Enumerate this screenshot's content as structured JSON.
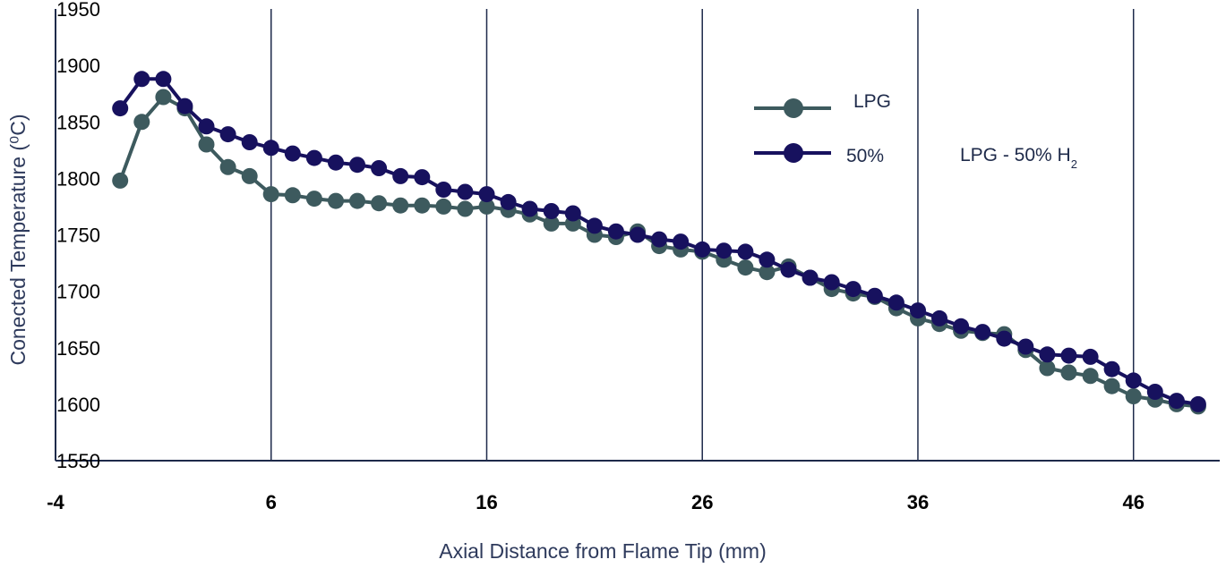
{
  "chart_data": {
    "type": "line",
    "xlabel": "Axial Distance from Flame Tip (mm)",
    "ylabel": "Conected Temperature (⁰C)",
    "xlim": [
      -4,
      50
    ],
    "ylim": [
      1550,
      1950
    ],
    "x_ticks": [
      "-4",
      "6",
      "16",
      "26",
      "36",
      "46"
    ],
    "x_tick_values": [
      -4,
      6,
      16,
      26,
      36,
      46
    ],
    "y_ticks": [
      "1950",
      "1900",
      "1850",
      "1800",
      "1750",
      "1700",
      "1650",
      "1600",
      "1550"
    ],
    "y_tick_values": [
      1950,
      1900,
      1850,
      1800,
      1750,
      1700,
      1650,
      1600,
      1550
    ],
    "grid": "vertical",
    "legend_position": "top-right",
    "series": [
      {
        "name": "LPG",
        "color": "#3d5a5e",
        "x": [
          -1,
          0,
          1,
          2,
          3,
          4,
          5,
          6,
          7,
          8,
          9,
          10,
          11,
          12,
          13,
          14,
          15,
          16,
          17,
          18,
          19,
          20,
          21,
          22,
          23,
          24,
          25,
          26,
          27,
          28,
          29,
          30,
          31,
          32,
          33,
          34,
          35,
          36,
          37,
          38,
          39,
          40,
          41,
          42,
          43,
          44,
          45,
          46,
          47,
          48,
          49
        ],
        "values": [
          1798,
          1850,
          1872,
          1862,
          1830,
          1810,
          1802,
          1786,
          1785,
          1782,
          1780,
          1780,
          1778,
          1776,
          1776,
          1775,
          1773,
          1775,
          1772,
          1768,
          1760,
          1760,
          1750,
          1748,
          1753,
          1740,
          1737,
          1735,
          1728,
          1721,
          1717,
          1722,
          1712,
          1702,
          1698,
          1695,
          1685,
          1676,
          1671,
          1665,
          1663,
          1662,
          1648,
          1632,
          1628,
          1625,
          1616,
          1607,
          1604,
          1600,
          1598
        ]
      },
      {
        "name": "50%",
        "color": "#17115e",
        "x": [
          -1,
          0,
          1,
          2,
          3,
          4,
          5,
          6,
          7,
          8,
          9,
          10,
          11,
          12,
          13,
          14,
          15,
          16,
          17,
          18,
          19,
          20,
          21,
          22,
          23,
          24,
          25,
          26,
          27,
          28,
          29,
          30,
          31,
          32,
          33,
          34,
          35,
          36,
          37,
          38,
          39,
          40,
          41,
          42,
          43,
          44,
          45,
          46,
          47,
          48,
          49
        ],
        "values": [
          1862,
          1888,
          1888,
          1864,
          1846,
          1839,
          1832,
          1827,
          1822,
          1818,
          1814,
          1812,
          1809,
          1802,
          1801,
          1790,
          1788,
          1786,
          1779,
          1773,
          1771,
          1769,
          1758,
          1753,
          1750,
          1746,
          1744,
          1737,
          1736,
          1735,
          1728,
          1719,
          1712,
          1708,
          1702,
          1696,
          1690,
          1683,
          1676,
          1669,
          1664,
          1658,
          1651,
          1644,
          1643,
          1642,
          1631,
          1621,
          1611,
          1603,
          1600
        ]
      }
    ],
    "annotations": [
      {
        "text": "LPG - 50% H",
        "subscript": "2"
      }
    ]
  }
}
